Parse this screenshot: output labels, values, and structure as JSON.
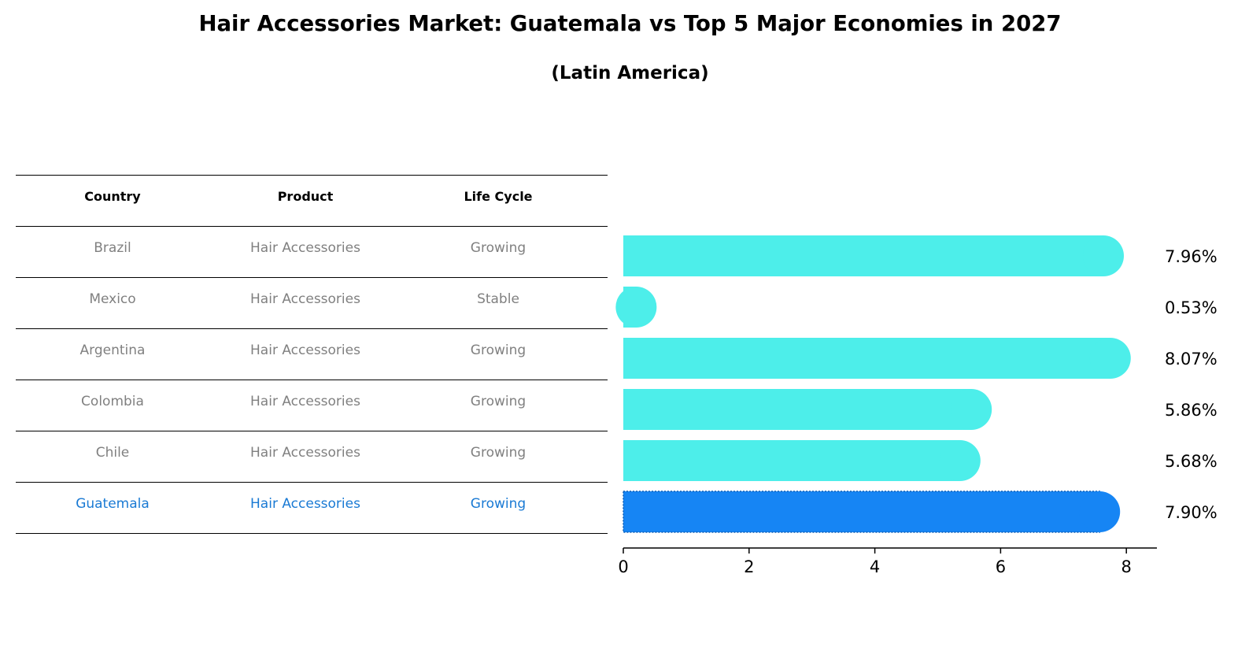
{
  "title": "Hair Accessories Market: Guatemala vs Top 5 Major Economies in 2027",
  "subtitle": "(Latin America)",
  "table": {
    "headers": [
      "Country",
      "Product",
      "Life Cycle"
    ],
    "rows": [
      {
        "country": "Brazil",
        "product": "Hair Accessories",
        "life_cycle": "Growing"
      },
      {
        "country": "Mexico",
        "product": "Hair Accessories",
        "life_cycle": "Stable"
      },
      {
        "country": "Argentina",
        "product": "Hair Accessories",
        "life_cycle": "Growing"
      },
      {
        "country": "Colombia",
        "product": "Hair Accessories",
        "life_cycle": "Growing"
      },
      {
        "country": "Chile",
        "product": "Hair Accessories",
        "life_cycle": "Growing"
      },
      {
        "country": "Guatemala",
        "product": "Hair Accessories",
        "life_cycle": "Growing"
      }
    ]
  },
  "chart_data": {
    "type": "bar",
    "orientation": "horizontal",
    "title": "Hair Accessories Market: Guatemala vs Top 5 Major Economies in 2027",
    "subtitle": "(Latin America)",
    "categories": [
      "Brazil",
      "Mexico",
      "Argentina",
      "Colombia",
      "Chile",
      "Guatemala"
    ],
    "values": [
      7.96,
      0.53,
      8.07,
      5.86,
      5.68,
      7.9
    ],
    "value_labels": [
      "7.96%",
      "0.53%",
      "8.07%",
      "5.86%",
      "5.68%",
      "7.90%"
    ],
    "highlight": "Guatemala",
    "x_ticks": [
      0,
      2,
      4,
      6,
      8
    ],
    "xlim": [
      0,
      8.5
    ],
    "xlabel": "",
    "ylabel": "",
    "grid": false,
    "colors": {
      "default": "#4deeea",
      "highlight": "#1685f4",
      "highlight_text": "#1a7ad4",
      "muted_text": "#808080"
    }
  }
}
